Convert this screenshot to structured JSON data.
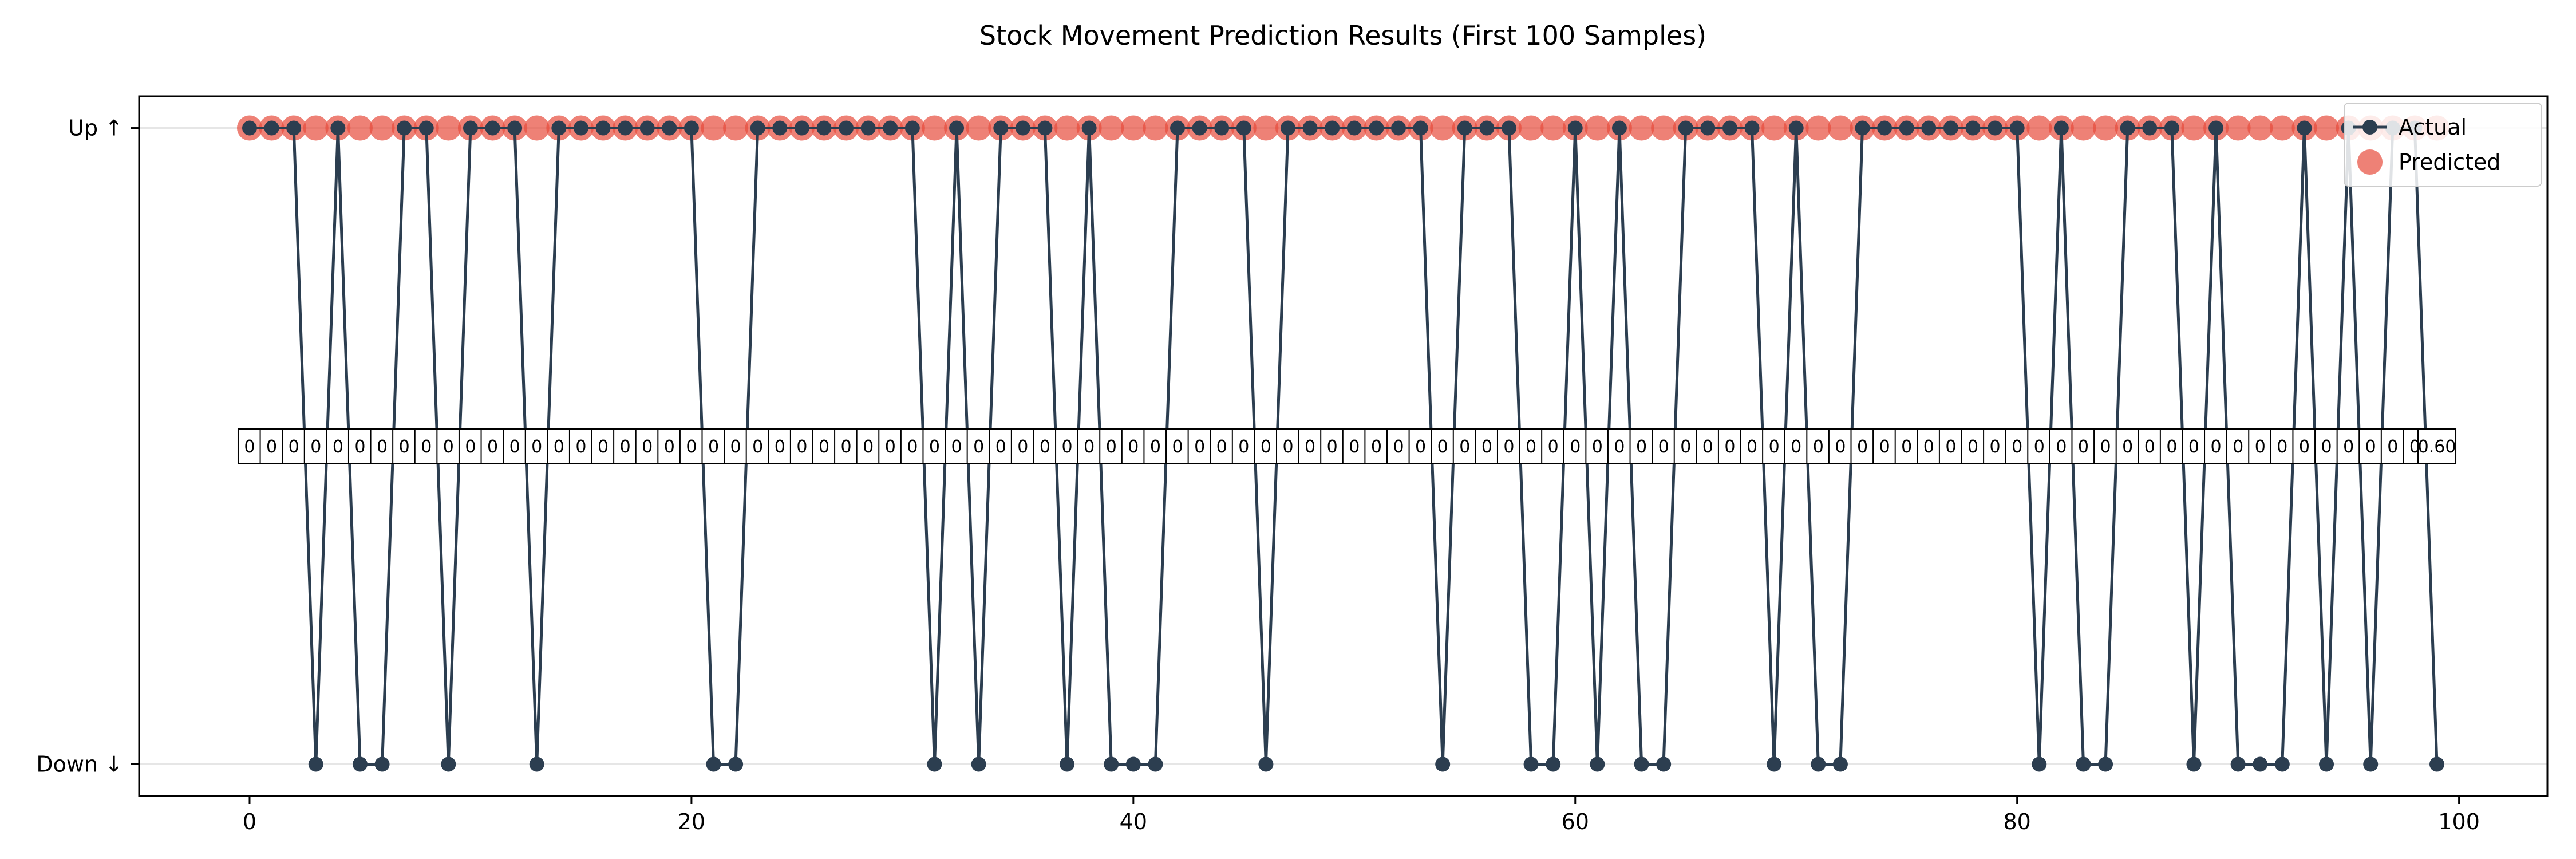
{
  "chart_data": {
    "type": "line",
    "title": "Stock Movement Prediction Results (First 100 Samples)",
    "xlabel": "",
    "ylabel": "",
    "xlim": [
      -5,
      104
    ],
    "ylim": [
      -0.05,
      1.05
    ],
    "x_ticks": [
      0,
      20,
      40,
      60,
      80,
      100
    ],
    "y_ticks": [
      {
        "value": 0,
        "label": "Down ↓"
      },
      {
        "value": 1,
        "label": "Up ↑"
      }
    ],
    "grid": "horizontal at y ticks",
    "legend_position": "top-right",
    "series": [
      {
        "name": "Actual",
        "kind": "line-with-markers",
        "color": "#2c3e50",
        "values": [
          1,
          1,
          1,
          0,
          1,
          0,
          0,
          1,
          1,
          0,
          1,
          1,
          1,
          0,
          1,
          1,
          1,
          1,
          1,
          1,
          1,
          0,
          0,
          1,
          1,
          1,
          1,
          1,
          1,
          1,
          1,
          0,
          1,
          0,
          1,
          1,
          1,
          0,
          1,
          0,
          0,
          0,
          1,
          1,
          1,
          1,
          0,
          1,
          1,
          1,
          1,
          1,
          1,
          1,
          0,
          1,
          1,
          1,
          0,
          0,
          1,
          0,
          1,
          0,
          0,
          1,
          1,
          1,
          1,
          0,
          1,
          0,
          0,
          1,
          1,
          1,
          1,
          1,
          1,
          1,
          1,
          0,
          1,
          0,
          0,
          1,
          1,
          1,
          0,
          1,
          0,
          0,
          0,
          1,
          0,
          1,
          0,
          1,
          1,
          0
        ]
      },
      {
        "name": "Predicted",
        "kind": "scatter",
        "color": "#e74c3c",
        "values": [
          1,
          1,
          1,
          1,
          1,
          1,
          1,
          1,
          1,
          1,
          1,
          1,
          1,
          1,
          1,
          1,
          1,
          1,
          1,
          1,
          1,
          1,
          1,
          1,
          1,
          1,
          1,
          1,
          1,
          1,
          1,
          1,
          1,
          1,
          1,
          1,
          1,
          1,
          1,
          1,
          1,
          1,
          1,
          1,
          1,
          1,
          1,
          1,
          1,
          1,
          1,
          1,
          1,
          1,
          1,
          1,
          1,
          1,
          1,
          1,
          1,
          1,
          1,
          1,
          1,
          1,
          1,
          1,
          1,
          1,
          1,
          1,
          1,
          1,
          1,
          1,
          1,
          1,
          1,
          1,
          1,
          1,
          1,
          1,
          1,
          1,
          1,
          1,
          1,
          1,
          1,
          1,
          1,
          1,
          1,
          1,
          1,
          1,
          1,
          1
        ]
      }
    ],
    "confidence_y": 0.5,
    "confidence_labels": [
      "0",
      "0",
      "0",
      "0",
      "0",
      "0",
      "0",
      "0",
      "0",
      "0",
      "0",
      "0",
      "0",
      "0",
      "0",
      "0",
      "0",
      "0",
      "0",
      "0",
      "0",
      "0",
      "0",
      "0",
      "0",
      "0",
      "0",
      "0",
      "0",
      "0",
      "0",
      "0",
      "0",
      "0",
      "0",
      "0",
      "0",
      "0",
      "0",
      "0",
      "0",
      "0",
      "0",
      "0",
      "0",
      "0",
      "0",
      "0",
      "0",
      "0",
      "0",
      "0",
      "0",
      "0",
      "0",
      "0",
      "0",
      "0",
      "0",
      "0",
      "0",
      "0",
      "0",
      "0",
      "0",
      "0",
      "0",
      "0",
      "0",
      "0",
      "0",
      "0",
      "0",
      "0",
      "0",
      "0",
      "0",
      "0",
      "0",
      "0",
      "0",
      "0",
      "0",
      "0",
      "0",
      "0",
      "0",
      "0",
      "0",
      "0",
      "0",
      "0",
      "0",
      "0",
      "0",
      "0",
      "0",
      "0",
      "0",
      "0.60"
    ]
  }
}
